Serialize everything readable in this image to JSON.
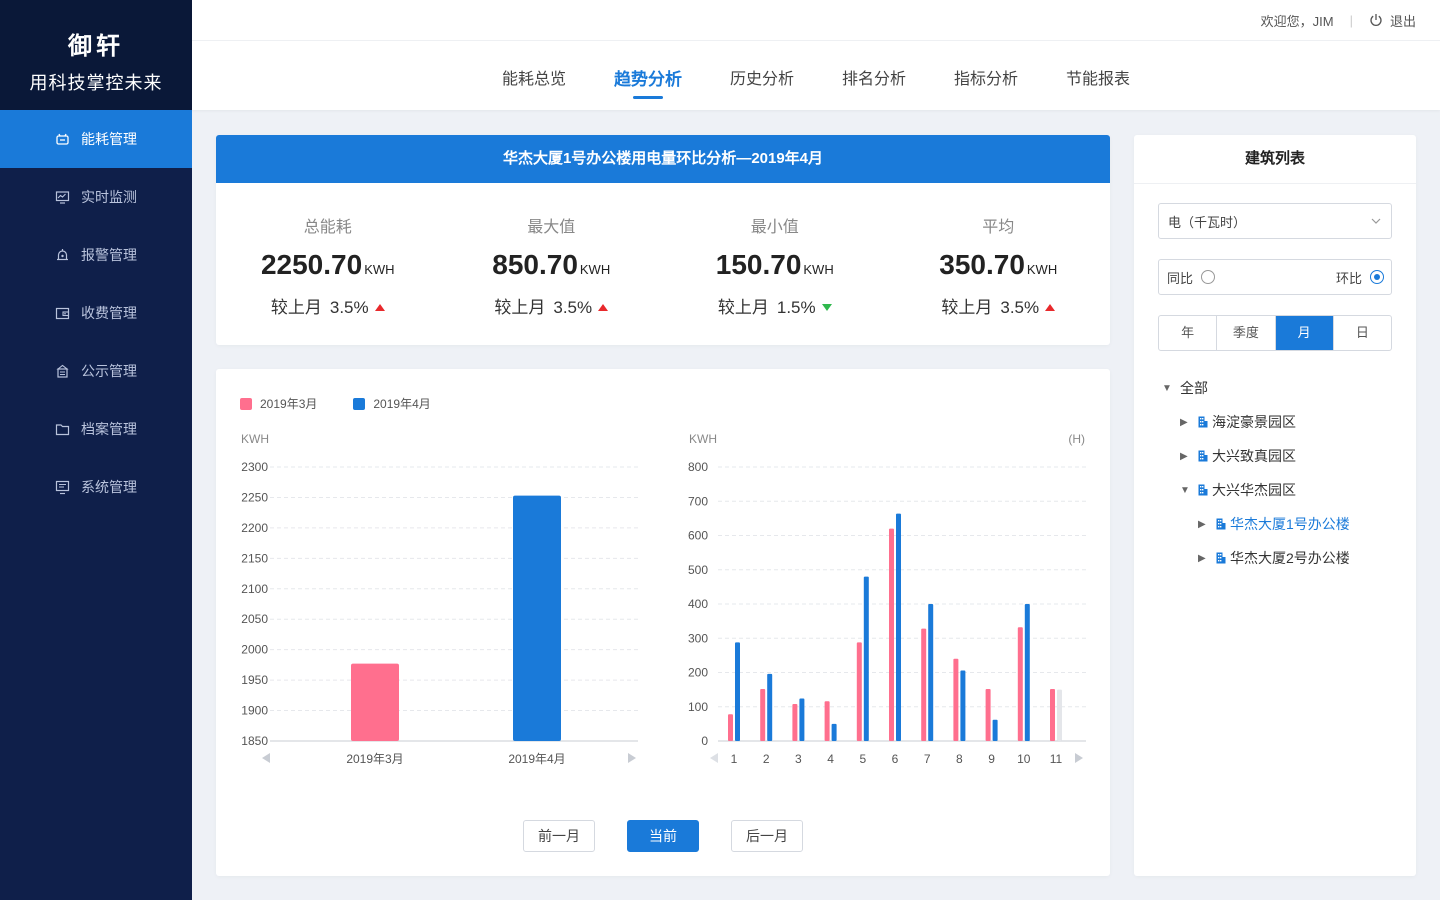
{
  "brand": {
    "name": "御轩",
    "slogan": "用科技掌控未来"
  },
  "sidebar": {
    "items": [
      {
        "label": "能耗管理",
        "icon": "energy-icon",
        "active": true
      },
      {
        "label": "实时监测",
        "icon": "monitor-icon",
        "active": false
      },
      {
        "label": "报警管理",
        "icon": "alarm-icon",
        "active": false
      },
      {
        "label": "收费管理",
        "icon": "wallet-icon",
        "active": false
      },
      {
        "label": "公示管理",
        "icon": "notice-icon",
        "active": false
      },
      {
        "label": "档案管理",
        "icon": "folder-icon",
        "active": false
      },
      {
        "label": "系统管理",
        "icon": "system-icon",
        "active": false
      }
    ]
  },
  "header": {
    "welcome": "欢迎您，JIM",
    "logout": "退出",
    "tabs": [
      "能耗总览",
      "趋势分析",
      "历史分析",
      "排名分析",
      "指标分析",
      "节能报表"
    ],
    "active_tab": 1
  },
  "summary": {
    "title": "华杰大厦1号办公楼用电量环比分析—2019年4月",
    "compare_label": "较上月",
    "stats": [
      {
        "label": "总能耗",
        "value": "2250.70",
        "unit": "KWH",
        "change": "3.5%",
        "trend": "up"
      },
      {
        "label": "最大值",
        "value": "850.70",
        "unit": "KWH",
        "change": "3.5%",
        "trend": "up"
      },
      {
        "label": "最小值",
        "value": "150.70",
        "unit": "KWH",
        "change": "1.5%",
        "trend": "down"
      },
      {
        "label": "平均",
        "value": "350.70",
        "unit": "KWH",
        "change": "3.5%",
        "trend": "up"
      }
    ]
  },
  "colors": {
    "accent": "#1a7ad9",
    "march": "#ff6f8e",
    "april": "#1a7ad9",
    "up": "#e8292c",
    "down": "#2fb84d"
  },
  "legend": [
    {
      "name": "2019年3月",
      "color": "#ff6f8e"
    },
    {
      "name": "2019年4月",
      "color": "#1a7ad9"
    }
  ],
  "chart_data": [
    {
      "type": "bar",
      "ylabel": "KWH",
      "ylim": [
        1850,
        2300
      ],
      "yticks": [
        1850,
        1900,
        1950,
        2000,
        2050,
        2100,
        2150,
        2200,
        2250,
        2300
      ],
      "categories": [
        "2019年3月",
        "2019年4月"
      ],
      "values": [
        1977,
        2253
      ],
      "colors": [
        "#ff6f8e",
        "#1a7ad9"
      ],
      "grid": true
    },
    {
      "type": "bar",
      "ylabel": "KWH",
      "xunit": "(H)",
      "ylim": [
        0,
        800
      ],
      "yticks": [
        0,
        100,
        200,
        300,
        400,
        500,
        600,
        700,
        800
      ],
      "categories": [
        "1",
        "2",
        "3",
        "4",
        "5",
        "6",
        "7",
        "8",
        "9",
        "10",
        "11"
      ],
      "series": [
        {
          "name": "2019年3月",
          "color": "#ff6f8e",
          "values": [
            78,
            152,
            108,
            116,
            288,
            620,
            328,
            240,
            152,
            332,
            152
          ]
        },
        {
          "name": "2019年4月",
          "color": "#1a7ad9",
          "values": [
            288,
            196,
            124,
            50,
            480,
            664,
            400,
            206,
            62,
            400,
            150
          ]
        }
      ],
      "grid": true
    }
  ],
  "pager": {
    "prev": "前一月",
    "current": "当前",
    "next": "后一月"
  },
  "rpanel": {
    "title": "建筑列表",
    "select_value": "电（千瓦时）",
    "radio_yoy": "同比",
    "radio_mom": "环比",
    "periods": [
      "年",
      "季度",
      "月",
      "日"
    ],
    "active_period": 2,
    "tree": [
      {
        "label": "全部",
        "level": 0,
        "expanded": true,
        "building": false,
        "selected": false
      },
      {
        "label": "海淀豪景园区",
        "level": 1,
        "expanded": false,
        "building": true,
        "selected": false
      },
      {
        "label": "大兴致真园区",
        "level": 1,
        "expanded": false,
        "building": true,
        "selected": false
      },
      {
        "label": "大兴华杰园区",
        "level": 1,
        "expanded": true,
        "building": true,
        "selected": false
      },
      {
        "label": "华杰大厦1号办公楼",
        "level": 2,
        "expanded": false,
        "building": true,
        "selected": true
      },
      {
        "label": "华杰大厦2号办公楼",
        "level": 2,
        "expanded": false,
        "building": true,
        "selected": false
      }
    ]
  }
}
